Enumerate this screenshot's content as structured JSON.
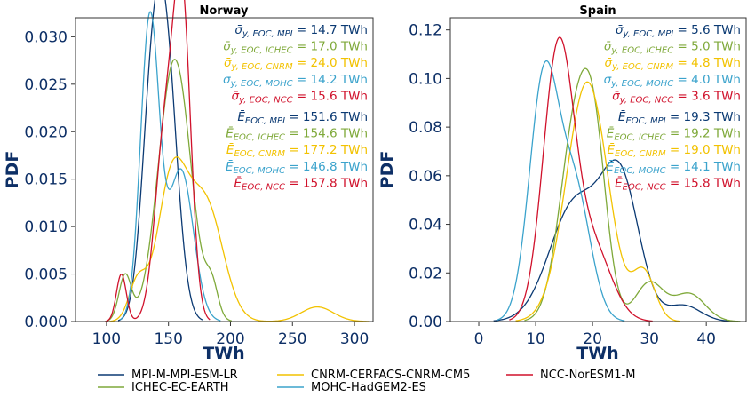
{
  "colors": {
    "MPI": "#0b3a73",
    "ICHEC": "#7fa93a",
    "CNRM": "#f2c200",
    "MOHC": "#3ba3cc",
    "NCC": "#d0112b",
    "axis_text": "#0d2f66"
  },
  "legend": {
    "items": [
      {
        "label": "MPI-M-MPI-ESM-LR",
        "color": "#0b3a73"
      },
      {
        "label": "ICHEC-EC-EARTH",
        "color": "#7fa93a"
      },
      {
        "label": "CNRM-CERFACS-CNRM-CM5",
        "color": "#f2c200"
      },
      {
        "label": "MOHC-HadGEM2-ES",
        "color": "#3ba3cc"
      },
      {
        "label": "NCC-NorESM1-M",
        "color": "#d0112b"
      }
    ]
  },
  "chart_data": [
    {
      "type": "line",
      "title": "Norway",
      "xlabel": "TWh",
      "ylabel": "PDF",
      "xlim": [
        75,
        315
      ],
      "ylim": [
        0,
        0.032
      ],
      "xticks": [
        "100",
        "150",
        "200",
        "250",
        "300"
      ],
      "yticks": [
        "0.000",
        "0.005",
        "0.010",
        "0.015",
        "0.020",
        "0.025",
        "0.030"
      ],
      "annotations": {
        "sigma": [
          {
            "model": "MPI",
            "value": "14.7 TWh"
          },
          {
            "model": "ICHEC",
            "value": "17.0 TWh"
          },
          {
            "model": "CNRM",
            "value": "24.0 TWh"
          },
          {
            "model": "MOHC",
            "value": "14.2 TWh"
          },
          {
            "model": "NCC",
            "value": "15.6 TWh"
          }
        ],
        "energy": [
          {
            "model": "MPI",
            "value": "151.6 TWh"
          },
          {
            "model": "ICHEC",
            "value": "154.6 TWh"
          },
          {
            "model": "CNRM",
            "value": "177.2 TWh"
          },
          {
            "model": "MOHC",
            "value": "146.8 TWh"
          },
          {
            "model": "NCC",
            "value": "157.8 TWh"
          }
        ]
      },
      "series": [
        {
          "name": "MPI-M-MPI-ESM-LR",
          "key": "MPI",
          "components": [
            [
              0.7,
              147,
              9.5
            ],
            [
              0.3,
              135,
              8
            ]
          ]
        },
        {
          "name": "ICHEC-EC-EARTH",
          "key": "ICHEC",
          "components": [
            [
              0.9,
              155,
              13
            ],
            [
              0.06,
              115,
              5
            ],
            [
              0.04,
              185,
              5
            ]
          ]
        },
        {
          "name": "CNRM-CERFACS-CNRM-CM5",
          "key": "CNRM",
          "components": [
            [
              0.45,
              153,
              12
            ],
            [
              0.43,
              180,
              14
            ],
            [
              0.07,
              125,
              7
            ],
            [
              0.05,
              270,
              13
            ]
          ]
        },
        {
          "name": "MOHC-HadGEM2-ES",
          "key": "MOHC",
          "components": [
            [
              0.6,
              135,
              7.5
            ],
            [
              0.4,
              160,
              10
            ]
          ]
        },
        {
          "name": "NCC-NorESM1-M",
          "key": "NCC",
          "components": [
            [
              0.57,
              161,
              7
            ],
            [
              0.38,
              147,
              8
            ],
            [
              0.05,
              112,
              4
            ]
          ]
        }
      ]
    },
    {
      "type": "line",
      "title": "Spain",
      "xlabel": "TWh",
      "ylabel": "PDF",
      "xlim": [
        -5,
        47
      ],
      "ylim": [
        0,
        0.125
      ],
      "xticks": [
        "0",
        "10",
        "20",
        "30",
        "40"
      ],
      "yticks": [
        "0.00",
        "0.02",
        "0.04",
        "0.06",
        "0.08",
        "0.10",
        "0.12"
      ],
      "annotations": {
        "sigma": [
          {
            "model": "MPI",
            "value": "5.6 TWh"
          },
          {
            "model": "ICHEC",
            "value": "5.0 TWh"
          },
          {
            "model": "CNRM",
            "value": "4.8 TWh"
          },
          {
            "model": "MOHC",
            "value": "4.0 TWh"
          },
          {
            "model": "NCC",
            "value": "3.6 TWh"
          }
        ],
        "energy": [
          {
            "model": "MPI",
            "value": "19.3 TWh"
          },
          {
            "model": "ICHEC",
            "value": "19.2 TWh"
          },
          {
            "model": "CNRM",
            "value": "19.0 TWh"
          },
          {
            "model": "MOHC",
            "value": "14.1 TWh"
          },
          {
            "model": "NCC",
            "value": "15.8 TWh"
          }
        ]
      },
      "series": [
        {
          "name": "MPI-M-MPI-ESM-LR",
          "key": "MPI",
          "components": [
            [
              0.55,
              17,
              4.5
            ],
            [
              0.45,
              25,
              3.3
            ],
            [
              0.05,
              36,
              3
            ]
          ]
        },
        {
          "name": "ICHEC-EC-EARTH",
          "key": "ICHEC",
          "components": [
            [
              0.55,
              17,
              2.8
            ],
            [
              0.3,
              20.5,
              2.2
            ],
            [
              0.1,
              30,
              2.5
            ],
            [
              0.08,
              37,
              2.8
            ]
          ]
        },
        {
          "name": "CNRM-CERFACS-CNRM-CM5",
          "key": "CNRM",
          "components": [
            [
              0.45,
              18,
              3.6
            ],
            [
              0.45,
              20,
              3.4
            ],
            [
              0.1,
              29,
              2
            ]
          ]
        },
        {
          "name": "MOHC-HadGEM2-ES",
          "key": "MOHC",
          "components": [
            [
              0.65,
              11.5,
              2.6
            ],
            [
              0.35,
              17,
              2.7
            ]
          ]
        },
        {
          "name": "NCC-NorESM1-M",
          "key": "NCC",
          "components": [
            [
              0.75,
              14,
              2.7
            ],
            [
              0.25,
              20,
              3.3
            ]
          ]
        }
      ]
    }
  ]
}
